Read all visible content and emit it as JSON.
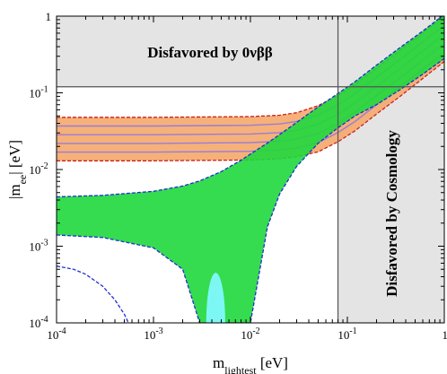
{
  "chart_data": {
    "type": "area",
    "xscale": "log",
    "yscale": "log",
    "xlim": [
      0.0001,
      1
    ],
    "ylim": [
      0.0001,
      1
    ],
    "xlabel": {
      "main": "m",
      "sub": "lightest",
      "unit": " [eV]"
    },
    "ylabel": {
      "main": "|m",
      "sub": "ee",
      "unit": "| [eV]"
    },
    "xticks": [
      0.0001,
      0.001,
      0.01,
      0.1,
      1
    ],
    "yticks": [
      0.0001,
      0.001,
      0.01,
      0.1,
      1
    ],
    "xtick_labels": [
      {
        "base": "10",
        "exp": "-4"
      },
      {
        "base": "10",
        "exp": "-3"
      },
      {
        "base": "10",
        "exp": "-2"
      },
      {
        "base": "10",
        "exp": "-1"
      },
      {
        "base": "1",
        "exp": ""
      }
    ],
    "ytick_labels": [
      {
        "base": "10",
        "exp": "-4"
      },
      {
        "base": "10",
        "exp": "-3"
      },
      {
        "base": "10",
        "exp": "-2"
      },
      {
        "base": "10",
        "exp": "-1"
      },
      {
        "base": "1",
        "exp": ""
      }
    ],
    "excluded_regions": [
      {
        "label": "Disfavored by 0νββ",
        "y_min": 0.12,
        "color": "#e4e4e4"
      },
      {
        "label": "Disfavored by Cosmology",
        "x_min": 0.08,
        "color": "#e4e4e4"
      }
    ],
    "bands": [
      {
        "ordering": "inverted",
        "fill": "#f4a86a",
        "edge": "#cc1f1f",
        "inner_lines": "#9b7bd8",
        "x": [
          0.0001,
          0.001,
          0.01,
          0.02,
          0.03,
          0.05,
          0.08,
          0.12,
          0.2,
          0.35,
          0.6,
          1
        ],
        "upper": [
          0.048,
          0.048,
          0.049,
          0.051,
          0.055,
          0.068,
          0.092,
          0.13,
          0.21,
          0.36,
          0.61,
          1.0
        ],
        "lower": [
          0.013,
          0.013,
          0.0133,
          0.0138,
          0.0147,
          0.017,
          0.023,
          0.032,
          0.053,
          0.09,
          0.154,
          0.257
        ]
      },
      {
        "ordering": "normal",
        "fill": "#1fd83c",
        "edge": "#1f2fd0",
        "x": [
          0.0001,
          0.0003,
          0.001,
          0.002,
          0.003,
          0.005,
          0.008,
          0.01,
          0.015,
          0.02,
          0.03,
          0.05,
          0.08,
          0.12,
          0.2,
          0.35,
          0.6,
          1
        ],
        "upper": [
          0.0044,
          0.0046,
          0.0052,
          0.0061,
          0.0071,
          0.0094,
          0.0132,
          0.0159,
          0.0222,
          0.0285,
          0.0411,
          0.0655,
          0.098,
          0.14,
          0.23,
          0.39,
          0.64,
          1.05
        ],
        "lower": [
          0.0014,
          0.0013,
          0.00095,
          0.0005,
          0.0001,
          0.0001,
          0.0001,
          0.0001,
          0.0018,
          0.0048,
          0.011,
          0.022,
          0.035,
          0.05,
          0.07,
          0.11,
          0.175,
          0.28
        ]
      }
    ],
    "cyan_spots": [
      {
        "x_min": 0.0035,
        "x_max": 0.0055,
        "y_min": 0.0001,
        "y_max": 0.00045,
        "color": "#7df7f4"
      }
    ],
    "dashed_curves": [
      {
        "color": "#1f2fd0",
        "x": [
          0.0001,
          0.00015,
          0.0002,
          0.0003,
          0.0004,
          0.0005,
          0.0006,
          0.0007
        ],
        "y": [
          0.00055,
          0.0005,
          0.00043,
          0.0003,
          0.0002,
          0.00013,
          8e-05,
          4e-05
        ]
      }
    ],
    "reference_lines": [
      {
        "orientation": "horizontal",
        "y": 0.12,
        "color": "#555555"
      },
      {
        "orientation": "vertical",
        "x": 0.08,
        "color": "#555555"
      }
    ]
  }
}
